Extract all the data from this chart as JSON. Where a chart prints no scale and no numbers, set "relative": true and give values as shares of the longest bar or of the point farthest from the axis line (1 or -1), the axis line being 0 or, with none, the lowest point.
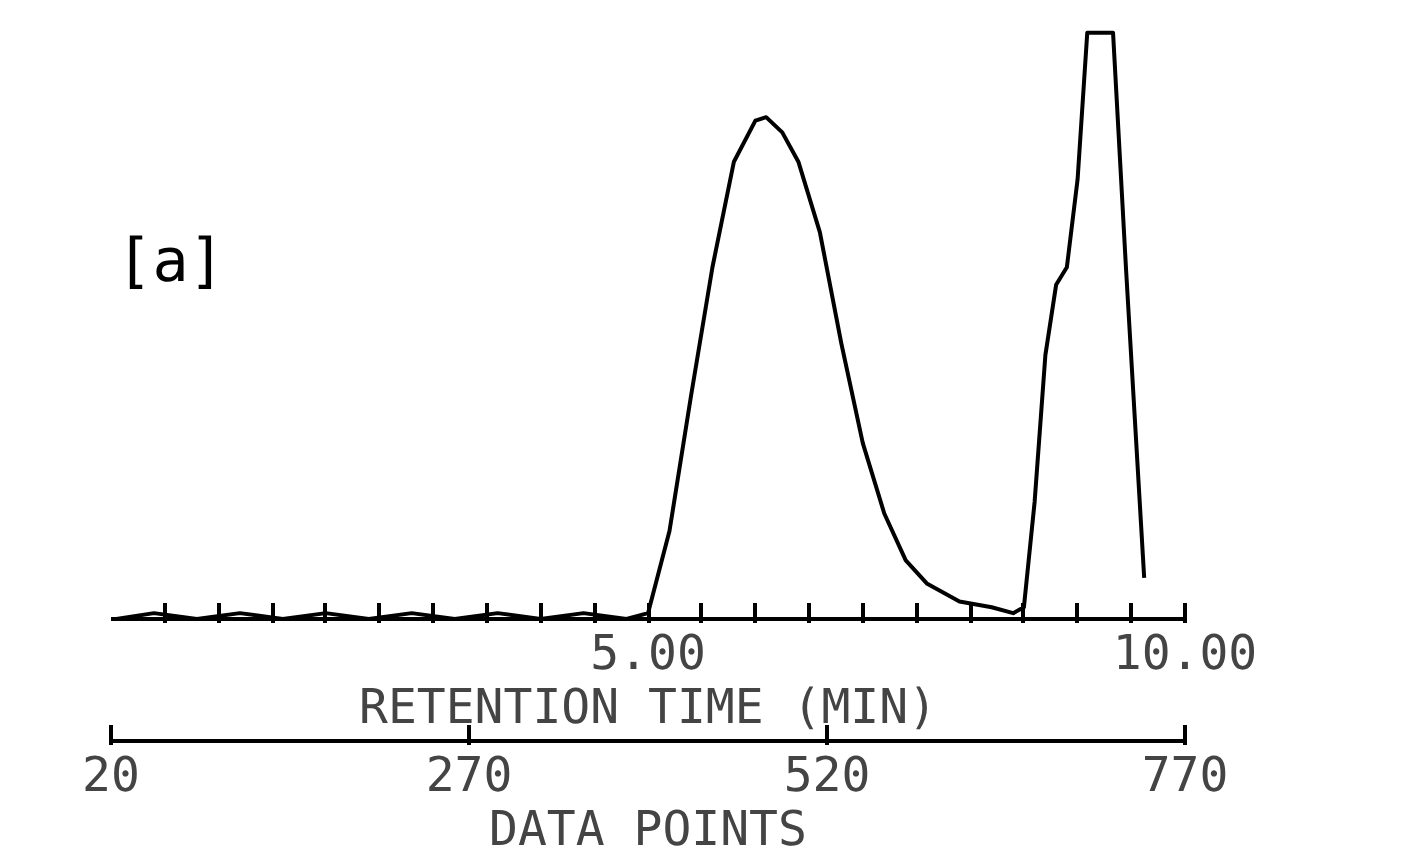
{
  "chart_data": {
    "type": "line",
    "relative": true,
    "annotations": [
      "[a]"
    ],
    "xlabel": "RETENTION TIME (MIN)",
    "x2label": "DATA POINTS",
    "xlim": [
      0,
      10
    ],
    "xticks": [
      {
        "value": 0.5,
        "label": null
      },
      {
        "value": 1,
        "label": null
      },
      {
        "value": 1.5,
        "label": null
      },
      {
        "value": 2,
        "label": null
      },
      {
        "value": 2.5,
        "label": null
      },
      {
        "value": 3,
        "label": null
      },
      {
        "value": 3.5,
        "label": null
      },
      {
        "value": 4,
        "label": null
      },
      {
        "value": 4.5,
        "label": null
      },
      {
        "value": 5,
        "label": "5.00"
      },
      {
        "value": 5.5,
        "label": null
      },
      {
        "value": 6,
        "label": null
      },
      {
        "value": 6.5,
        "label": null
      },
      {
        "value": 7,
        "label": null
      },
      {
        "value": 7.5,
        "label": null
      },
      {
        "value": 8,
        "label": null
      },
      {
        "value": 8.5,
        "label": null
      },
      {
        "value": 9,
        "label": null
      },
      {
        "value": 9.5,
        "label": null
      },
      {
        "value": 10,
        "label": "10.00"
      }
    ],
    "x2lim": [
      20,
      770
    ],
    "x2ticks": [
      20,
      270,
      520,
      770
    ],
    "grid": false,
    "tick_labels": "x",
    "series": [
      {
        "color": "#000000",
        "x": [
          0.05,
          0.4,
          0.8,
          1.2,
          1.6,
          2.0,
          2.4,
          2.8,
          3.2,
          3.6,
          4.0,
          4.4,
          4.8,
          5.0,
          5.2,
          5.4,
          5.6,
          5.8,
          6.0,
          6.1,
          6.25,
          6.4,
          6.6,
          6.8,
          7.0,
          7.2,
          7.4,
          7.6,
          7.9,
          8.2,
          8.4,
          8.5,
          8.6,
          8.7,
          8.8,
          8.9,
          9.0,
          9.09,
          9.33,
          9.45,
          9.62
        ],
        "values": [
          0.0,
          0.01,
          0.0,
          0.01,
          0.0,
          0.01,
          0.0,
          0.01,
          0.0,
          0.01,
          0.0,
          0.01,
          0.0,
          0.01,
          0.15,
          0.38,
          0.6,
          0.78,
          0.85,
          0.856,
          0.83,
          0.78,
          0.66,
          0.47,
          0.3,
          0.18,
          0.1,
          0.06,
          0.03,
          0.02,
          0.01,
          0.02,
          0.2,
          0.45,
          0.57,
          0.6,
          0.75,
          1.0,
          1.0,
          0.6,
          0.07
        ]
      }
    ]
  }
}
